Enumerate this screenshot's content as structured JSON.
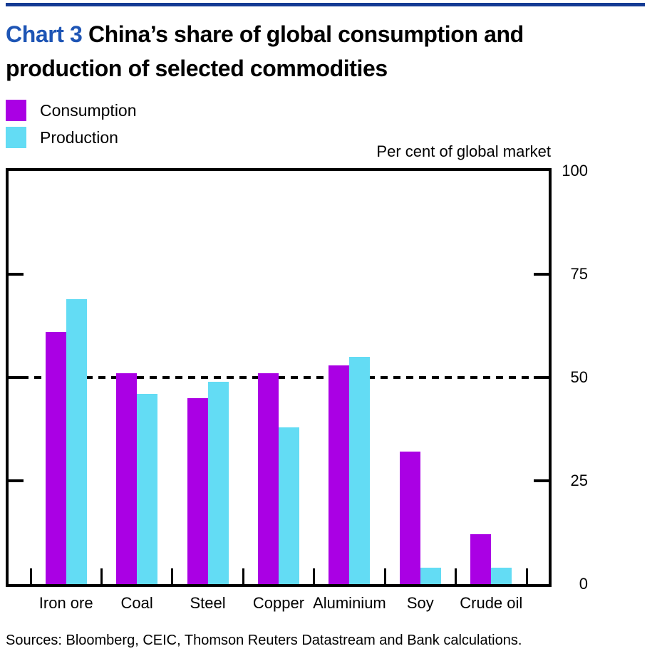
{
  "page": {
    "title_chart_label": "Chart 3",
    "title_line1": "China’s share of global consumption and",
    "title_line2": "production of selected commodities",
    "sources": "Sources: Bloomberg, CEIC, Thomson Reuters Datastream and Bank calculations."
  },
  "colors": {
    "consumption": "#aa00e4",
    "production": "#63dcf4",
    "title_accent": "#1e55b5",
    "top_rule": "#143b94",
    "axis": "#000000"
  },
  "chart_data": {
    "type": "bar",
    "title": "Chart 3 China’s share of global consumption and production of selected commodities",
    "axis_label": "Per cent of global market",
    "categories": [
      "Iron ore",
      "Coal",
      "Steel",
      "Copper",
      "Aluminium",
      "Soy",
      "Crude oil"
    ],
    "series": [
      {
        "name": "Consumption",
        "color_key": "consumption",
        "values": [
          61,
          51,
          45,
          51,
          53,
          32,
          12
        ]
      },
      {
        "name": "Production",
        "color_key": "production",
        "values": [
          69,
          46,
          49,
          38,
          55,
          4,
          4
        ]
      }
    ],
    "y_ticks": [
      0,
      25,
      50,
      75,
      100
    ],
    "ylim": [
      0,
      100
    ],
    "reference_line": 50,
    "legend_position": "top-left",
    "grid": false
  }
}
